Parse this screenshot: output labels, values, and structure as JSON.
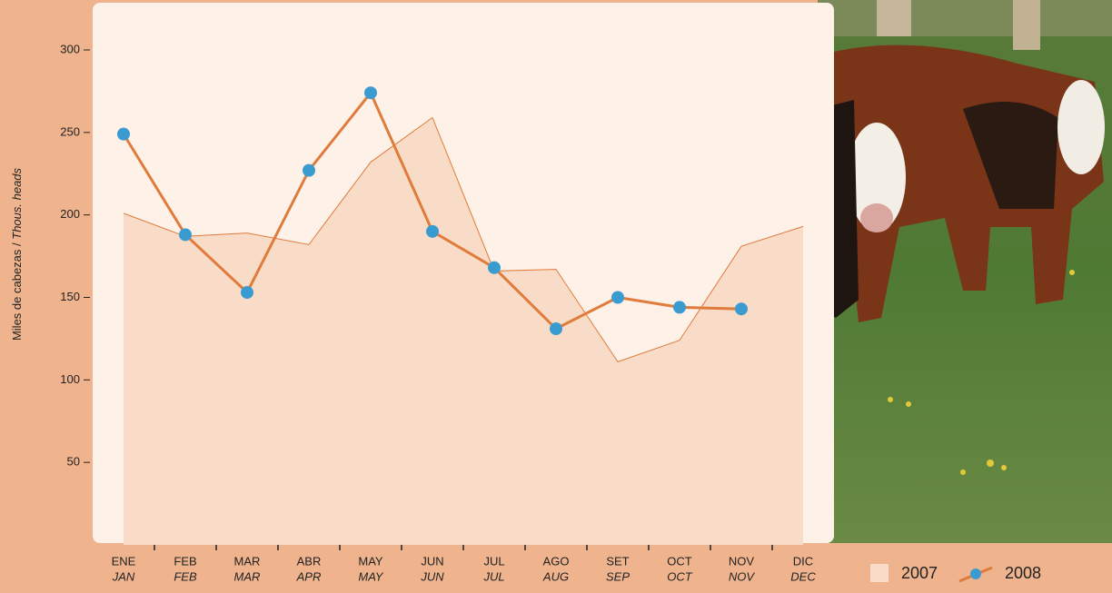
{
  "chart_data": {
    "type": "line",
    "y_label": {
      "es": "Miles de cabezas / ",
      "en": "Thous. heads"
    },
    "categories": [
      "ENE",
      "FEB",
      "MAR",
      "ABR",
      "MAY",
      "JUN",
      "JUL",
      "AGO",
      "SET",
      "OCT",
      "NOV",
      "DIC"
    ],
    "categories_en": [
      "JAN",
      "FEB",
      "MAR",
      "APR",
      "MAY",
      "JUN",
      "JUL",
      "AUG",
      "SEP",
      "OCT",
      "NOV",
      "DEC"
    ],
    "series": [
      {
        "name": "2007",
        "style": "area",
        "color": "#e07b3c",
        "fill": "#f8dcc8",
        "values": [
          201,
          187,
          189,
          182,
          232,
          259,
          166,
          167,
          111,
          124,
          181,
          193
        ]
      },
      {
        "name": "2008",
        "style": "line-marker",
        "color": "#e07b3c",
        "marker_color": "#3a9bd0",
        "values": [
          249,
          188,
          153,
          227,
          274,
          190,
          168,
          131,
          150,
          144,
          143,
          null
        ]
      }
    ],
    "ylim": [
      0,
      300
    ],
    "yticks": [
      50,
      100,
      150,
      200,
      250,
      300
    ]
  }
}
